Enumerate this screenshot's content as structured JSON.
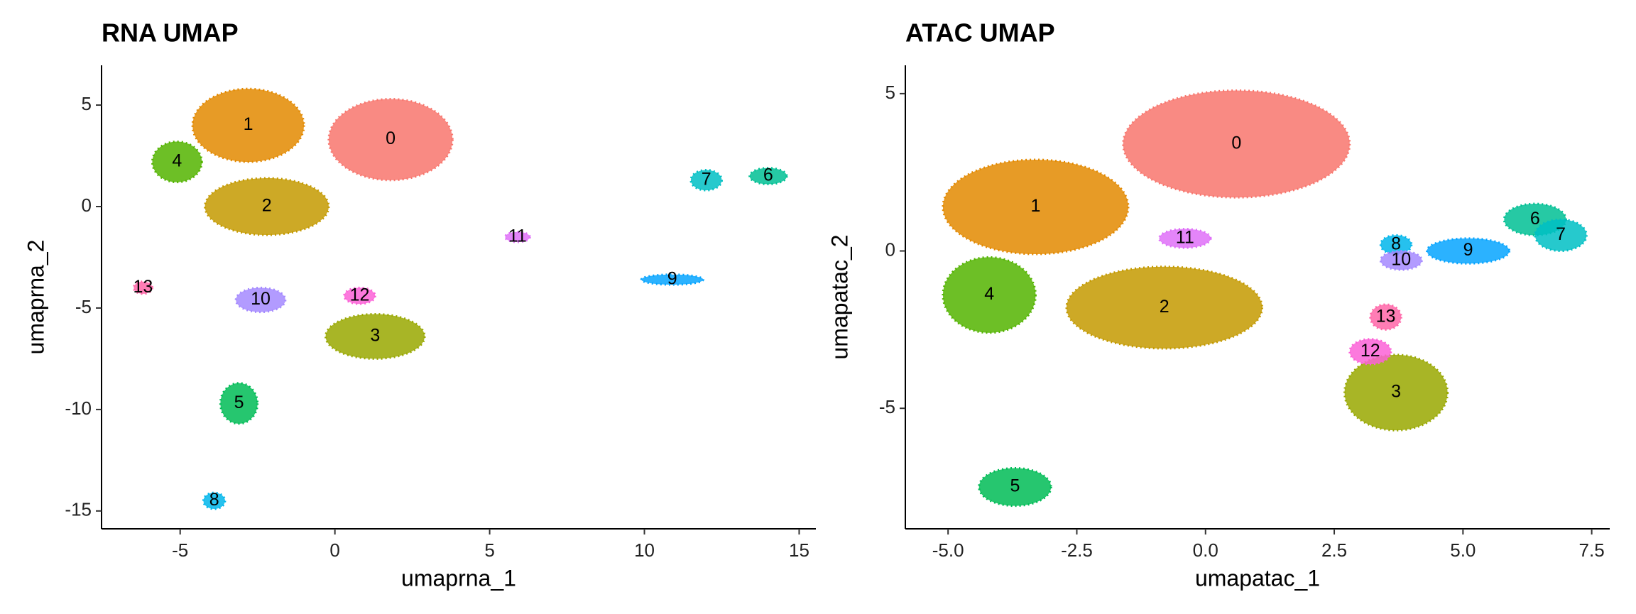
{
  "chart_data": [
    {
      "type": "scatter",
      "title": "RNA UMAP",
      "xlabel": "umaprna_1",
      "ylabel": "umaprna_2",
      "xlim": [
        -7.54,
        15.54
      ],
      "ylim": [
        -15.88,
        6.96
      ],
      "xticks": [
        -5,
        0,
        5,
        10,
        15
      ],
      "yticks": [
        5,
        0,
        -5,
        -10,
        -15
      ],
      "clusters": [
        {
          "label": "0",
          "color": "#F8766D",
          "x": 1.8,
          "y": 3.3,
          "rx": 2.0,
          "ry": 2.0
        },
        {
          "label": "1",
          "color": "#E38900",
          "x": -2.8,
          "y": 4.0,
          "rx": 1.8,
          "ry": 1.8
        },
        {
          "label": "2",
          "color": "#C49A00",
          "x": -2.2,
          "y": 0.0,
          "rx": 2.0,
          "ry": 1.4
        },
        {
          "label": "3",
          "color": "#99A800",
          "x": 1.3,
          "y": -6.4,
          "rx": 1.6,
          "ry": 1.1
        },
        {
          "label": "4",
          "color": "#53B400",
          "x": -5.1,
          "y": 2.2,
          "rx": 0.8,
          "ry": 1.0
        },
        {
          "label": "5",
          "color": "#00BC56",
          "x": -3.1,
          "y": -9.7,
          "rx": 0.6,
          "ry": 1.0
        },
        {
          "label": "6",
          "color": "#00C094",
          "x": 14.0,
          "y": 1.5,
          "rx": 0.6,
          "ry": 0.4
        },
        {
          "label": "7",
          "color": "#00BFC4",
          "x": 12.0,
          "y": 1.3,
          "rx": 0.5,
          "ry": 0.5
        },
        {
          "label": "8",
          "color": "#00B6EB",
          "x": -3.9,
          "y": -14.5,
          "rx": 0.35,
          "ry": 0.4
        },
        {
          "label": "9",
          "color": "#06A4FF",
          "x": 10.9,
          "y": -3.6,
          "rx": 1.0,
          "ry": 0.25
        },
        {
          "label": "10",
          "color": "#A58AFF",
          "x": -2.4,
          "y": -4.6,
          "rx": 0.8,
          "ry": 0.6
        },
        {
          "label": "11",
          "color": "#DF70F8",
          "x": 5.9,
          "y": -1.5,
          "rx": 0.4,
          "ry": 0.25
        },
        {
          "label": "12",
          "color": "#FB61D7",
          "x": 0.8,
          "y": -4.4,
          "rx": 0.5,
          "ry": 0.4
        },
        {
          "label": "13",
          "color": "#FF66A8",
          "x": -6.2,
          "y": -4.0,
          "rx": 0.3,
          "ry": 0.3
        }
      ]
    },
    {
      "type": "scatter",
      "title": "ATAC UMAP",
      "xlabel": "umapatac_1",
      "ylabel": "umapatac_2",
      "xlim": [
        -5.83,
        7.85
      ],
      "ylim": [
        -8.83,
        5.9
      ],
      "xticks": [
        {
          "value": -5,
          "label": "-5.0"
        },
        -2.5,
        {
          "value": 0,
          "label": "0.0"
        },
        2.5,
        {
          "value": 5,
          "label": "5.0"
        },
        7.5
      ],
      "yticks": [
        5,
        0,
        -5
      ],
      "clusters": [
        {
          "label": "0",
          "color": "#F8766D",
          "x": 0.6,
          "y": 3.4,
          "rx": 2.2,
          "ry": 1.7
        },
        {
          "label": "1",
          "color": "#E38900",
          "x": -3.3,
          "y": 1.4,
          "rx": 1.8,
          "ry": 1.5
        },
        {
          "label": "2",
          "color": "#C49A00",
          "x": -0.8,
          "y": -1.8,
          "rx": 1.9,
          "ry": 1.3
        },
        {
          "label": "3",
          "color": "#99A800",
          "x": 3.7,
          "y": -4.5,
          "rx": 1.0,
          "ry": 1.2
        },
        {
          "label": "4",
          "color": "#53B400",
          "x": -4.2,
          "y": -1.4,
          "rx": 0.9,
          "ry": 1.2
        },
        {
          "label": "5",
          "color": "#00BC56",
          "x": -3.7,
          "y": -7.5,
          "rx": 0.7,
          "ry": 0.6
        },
        {
          "label": "6",
          "color": "#00C094",
          "x": 6.4,
          "y": 1.0,
          "rx": 0.6,
          "ry": 0.5
        },
        {
          "label": "7",
          "color": "#00BFC4",
          "x": 6.9,
          "y": 0.5,
          "rx": 0.5,
          "ry": 0.5
        },
        {
          "label": "8",
          "color": "#00B6EB",
          "x": 3.7,
          "y": 0.2,
          "rx": 0.3,
          "ry": 0.3
        },
        {
          "label": "9",
          "color": "#06A4FF",
          "x": 5.1,
          "y": 0.0,
          "rx": 0.8,
          "ry": 0.4
        },
        {
          "label": "10",
          "color": "#A58AFF",
          "x": 3.8,
          "y": -0.3,
          "rx": 0.4,
          "ry": 0.3
        },
        {
          "label": "11",
          "color": "#DF70F8",
          "x": -0.4,
          "y": 0.4,
          "rx": 0.5,
          "ry": 0.3
        },
        {
          "label": "12",
          "color": "#FB61D7",
          "x": 3.2,
          "y": -3.2,
          "rx": 0.4,
          "ry": 0.4
        },
        {
          "label": "13",
          "color": "#FF66A8",
          "x": 3.5,
          "y": -2.1,
          "rx": 0.3,
          "ry": 0.4
        }
      ]
    }
  ]
}
